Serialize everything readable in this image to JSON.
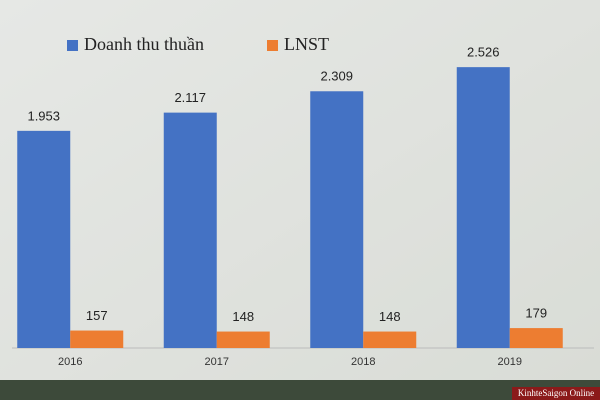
{
  "chart_data": {
    "type": "bar",
    "categories": [
      "2016",
      "2017",
      "2018",
      "2019"
    ],
    "series": [
      {
        "name": "Doanh thu thuần",
        "color": "#4472c4",
        "values": [
          1953,
          2117,
          2309,
          2526
        ],
        "value_labels": [
          "1.953",
          "2.117",
          "2.309",
          "2.526"
        ]
      },
      {
        "name": "LNST",
        "color": "#ed7d31",
        "values": [
          157,
          148,
          148,
          179
        ]
      }
    ],
    "ylim": [
      0,
      2950
    ],
    "legend": "top-left",
    "watermark": "KinhteSaigon Online"
  }
}
